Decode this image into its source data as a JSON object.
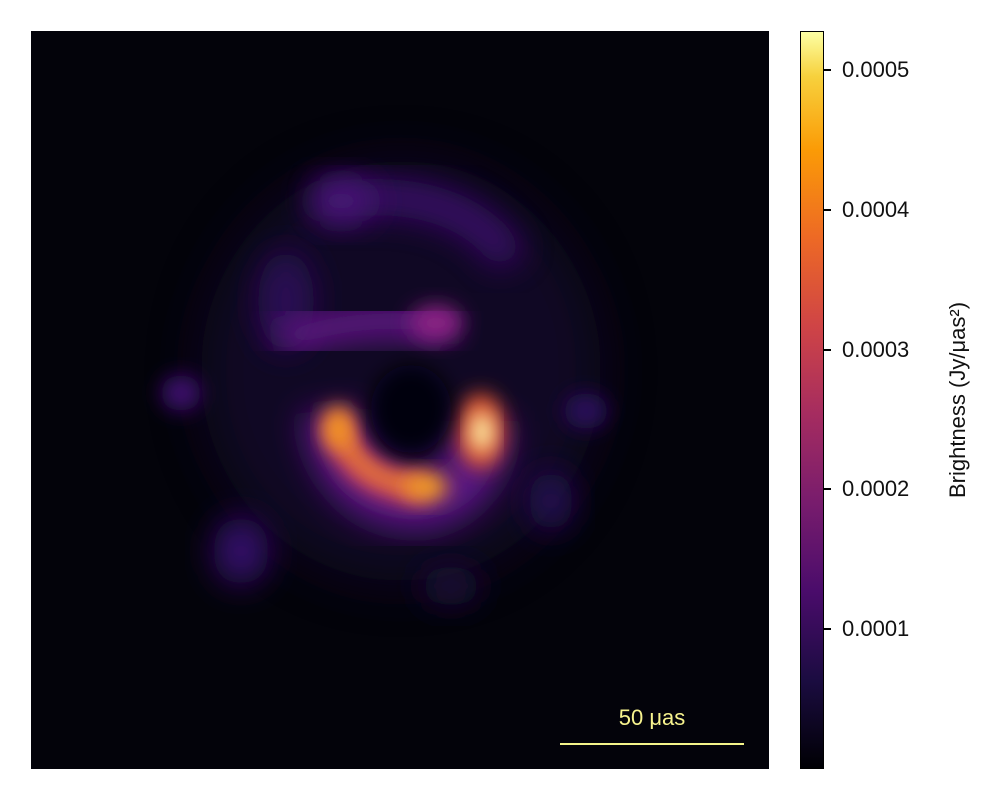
{
  "chart_data": {
    "type": "heatmap",
    "title": "",
    "colorbar": {
      "label": "Brightness (Jy/μas²)",
      "colormap": "inferno",
      "range": [
        0.0,
        0.000528
      ],
      "ticks": [
        {
          "value": 0.0001,
          "label": "0.0001"
        },
        {
          "value": 0.0002,
          "label": "0.0002"
        },
        {
          "value": 0.0003,
          "label": "0.0003"
        },
        {
          "value": 0.0004,
          "label": "0.0004"
        },
        {
          "value": 0.0005,
          "label": "0.0005"
        }
      ]
    },
    "scale_bar": {
      "label": "50 μas",
      "length_uas": 50
    },
    "features": [
      {
        "name": "ring-lower-left-arc",
        "peak_brightness": 0.00039
      },
      {
        "name": "ring-right-hotspot",
        "peak_brightness": 0.000525
      },
      {
        "name": "upper-band",
        "peak_brightness": 0.00019
      },
      {
        "name": "outer-arc",
        "peak_brightness": 0.00012
      },
      {
        "name": "left-blob",
        "peak_brightness": 8e-05
      },
      {
        "name": "lower-left-blob",
        "peak_brightness": 7e-05
      },
      {
        "name": "right-blob",
        "peak_brightness": 5e-05
      }
    ]
  }
}
